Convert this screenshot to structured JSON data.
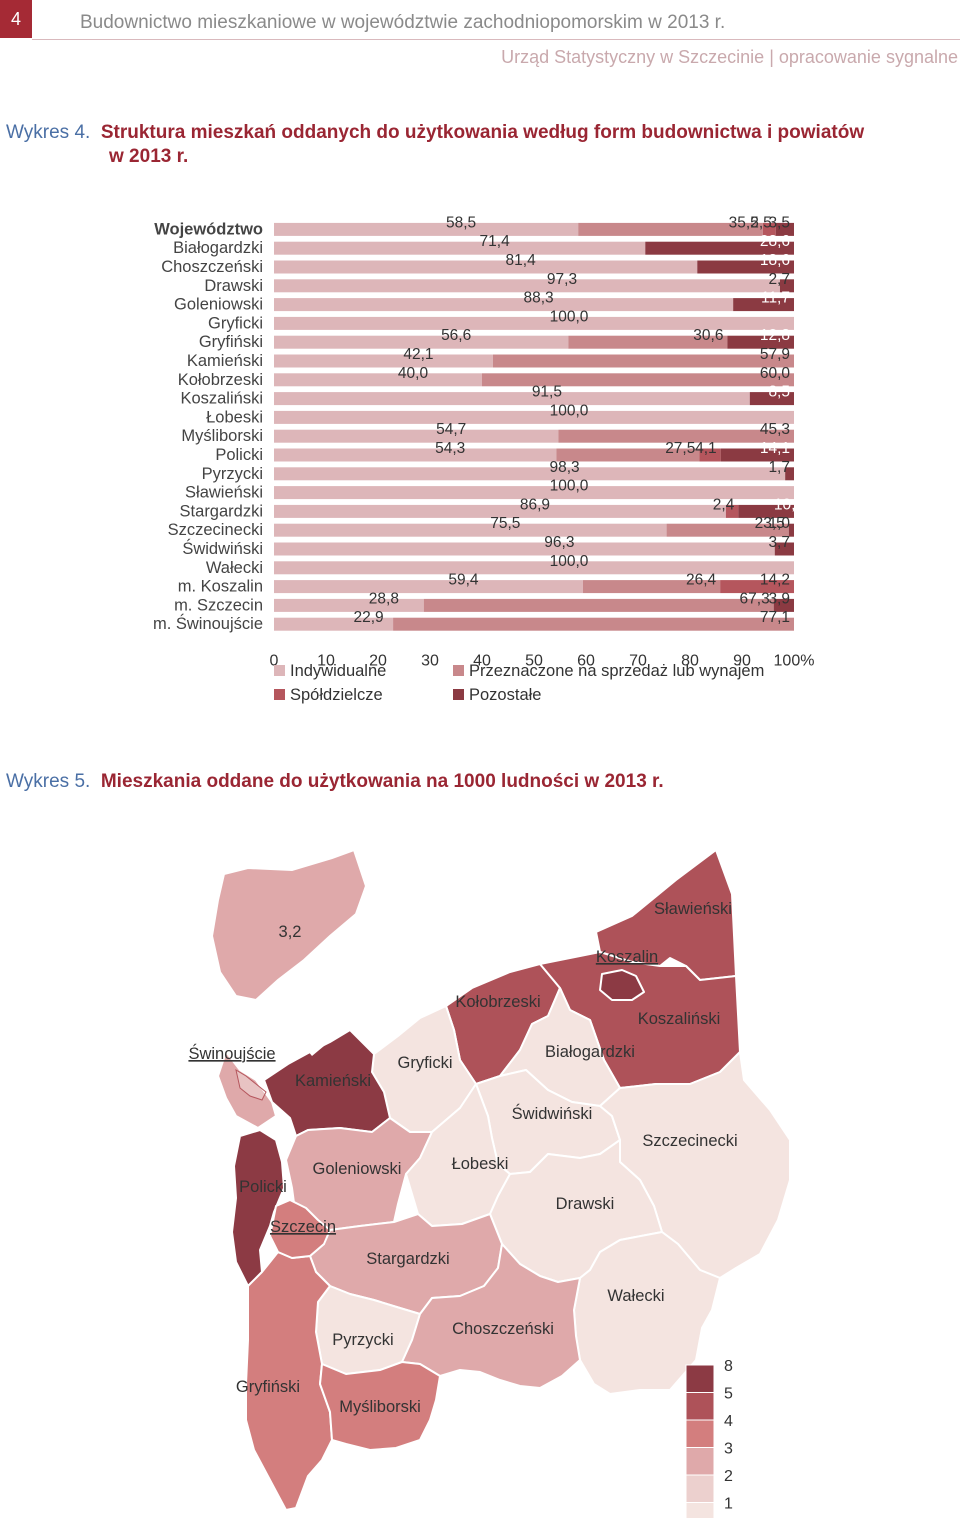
{
  "header": {
    "page_number": "4",
    "title": "Budownictwo mieszkaniowe w województwie zachodniopomorskim w 2013 r.",
    "subtitle": "Urząd Statystyczny w Szczecinie | opracowanie sygnalne"
  },
  "figure4": {
    "number": "Wykres 4.",
    "title_line1": "Struktura mieszkań oddanych do użytkowania według form budownictwa i powiatów",
    "title_line2": "w 2013 r."
  },
  "figure5": {
    "number": "Wykres 5.",
    "title": "Mieszkania oddane do użytkowania na 1000 ludności w 2013 r."
  },
  "colors": {
    "accent": "#a52a35",
    "individual": "#ddb6b9",
    "sale": "#c8888b",
    "cooperative": "#b5565d",
    "other": "#8b3a42"
  },
  "chart_data": [
    {
      "type": "bar",
      "orientation": "horizontal",
      "stacked": true,
      "categories": [
        "Województwo",
        "Białogardzki",
        "Choszczeński",
        "Drawski",
        "Goleniowski",
        "Gryficki",
        "Gryfiński",
        "Kamieński",
        "Kołobrzeski",
        "Koszaliński",
        "Łobeski",
        "Myśliborski",
        "Policki",
        "Pyrzycki",
        "Sławieński",
        "Stargardzki",
        "Szczecinecki",
        "Świdwiński",
        "Wałecki",
        "m. Koszalin",
        "m. Szczecin",
        "m. Świnoujście"
      ],
      "series": [
        {
          "name": "Indywidualne",
          "values": [
            58.5,
            71.4,
            81.4,
            97.3,
            88.3,
            100.0,
            56.6,
            42.1,
            40.0,
            91.5,
            100.0,
            54.7,
            54.3,
            98.3,
            100.0,
            86.9,
            75.5,
            96.3,
            100.0,
            59.4,
            28.8,
            22.9
          ]
        },
        {
          "name": "Przeznaczone na sprzedaż lub wynajem",
          "values": [
            35.5,
            0,
            0,
            0,
            0,
            0,
            30.6,
            57.9,
            60.0,
            0,
            0,
            45.3,
            27.5,
            0,
            0,
            0,
            23.5,
            0,
            0,
            26.4,
            67.3,
            77.1
          ]
        },
        {
          "name": "Spółdzielcze",
          "values": [
            2.5,
            0,
            0,
            0,
            0,
            0,
            0,
            0,
            0,
            0,
            0,
            0,
            4.1,
            0,
            0,
            2.4,
            0,
            0,
            0,
            14.2,
            0,
            0
          ]
        },
        {
          "name": "Pozostałe",
          "values": [
            3.5,
            28.6,
            18.6,
            2.7,
            11.7,
            0,
            12.8,
            0,
            0,
            8.5,
            0,
            0,
            14.1,
            1.7,
            0,
            10.7,
            1.0,
            3.7,
            0,
            0,
            3.9,
            0
          ]
        }
      ],
      "xlim": [
        0,
        100
      ],
      "xticks": [
        "0",
        "10",
        "20",
        "30",
        "40",
        "50",
        "60",
        "70",
        "80",
        "90",
        "100%"
      ],
      "labels": [
        [
          "58,5",
          "35,5",
          "2,5",
          "3,5"
        ],
        [
          "71,4",
          "",
          "",
          "28,6"
        ],
        [
          "81,4",
          "",
          "",
          "18,6"
        ],
        [
          "97,3",
          "",
          "",
          "2,7"
        ],
        [
          "88,3",
          "",
          "",
          "11,7"
        ],
        [
          "100,0",
          "",
          "",
          ""
        ],
        [
          "56,6",
          "30,6",
          "",
          "12,8"
        ],
        [
          "42,1",
          "57,9",
          "",
          ""
        ],
        [
          "40,0",
          "60,0",
          "",
          ""
        ],
        [
          "91,5",
          "",
          "",
          "8,5"
        ],
        [
          "100,0",
          "",
          "",
          ""
        ],
        [
          "54,7",
          "45,3",
          "",
          ""
        ],
        [
          "54,3",
          "27,5",
          "4,1",
          "14,1"
        ],
        [
          "98,3",
          "",
          "",
          "1,7"
        ],
        [
          "100,0",
          "",
          "",
          ""
        ],
        [
          "86,9",
          "",
          "2,4",
          "10,7"
        ],
        [
          "75,5",
          "23,5",
          "",
          "1,0"
        ],
        [
          "96,3",
          "",
          "",
          "3,7"
        ],
        [
          "100,0",
          "",
          "",
          ""
        ],
        [
          "59,4",
          "26,4",
          "14,2",
          ""
        ],
        [
          "28,8",
          "67,3",
          "",
          "3,9"
        ],
        [
          "22,9",
          "77,1",
          "",
          ""
        ]
      ],
      "legend_position": "bottom"
    },
    {
      "type": "choropleth",
      "legend_values": [
        "8",
        "5",
        "4",
        "3",
        "2",
        "1"
      ],
      "legend_colors": [
        "#8c3a44",
        "#ae5259",
        "#d37e7e",
        "#dfa9aa",
        "#ecd0ce",
        "#f4e4e0"
      ],
      "regions": [
        {
          "name": "Sławieński",
          "class": 5
        },
        {
          "name": "Koszalin",
          "class": 8
        },
        {
          "name": "Koszaliński",
          "class": 5
        },
        {
          "name": "Kołobrzeski",
          "class": 5
        },
        {
          "name": "Białogardzki",
          "class": 1
        },
        {
          "name": "Gryficki",
          "class": 1
        },
        {
          "name": "Świnoujście",
          "class": 3,
          "label": "Świnoujście",
          "value_label": "3,2"
        },
        {
          "name": "Kamieński",
          "class": 8
        },
        {
          "name": "Świdwiński",
          "class": 1
        },
        {
          "name": "Szczecinecki",
          "class": 1
        },
        {
          "name": "Goleniowski",
          "class": 3
        },
        {
          "name": "Łobeski",
          "class": 1
        },
        {
          "name": "Policki",
          "class": 8
        },
        {
          "name": "Szczecin",
          "class": 4
        },
        {
          "name": "Drawski",
          "class": 1
        },
        {
          "name": "Stargardzki",
          "class": 3
        },
        {
          "name": "Wałecki",
          "class": 1
        },
        {
          "name": "Pyrzycki",
          "class": 1
        },
        {
          "name": "Choszczeński",
          "class": 3
        },
        {
          "name": "Gryfiński",
          "class": 4
        },
        {
          "name": "Myśliborski",
          "class": 4
        }
      ]
    }
  ]
}
